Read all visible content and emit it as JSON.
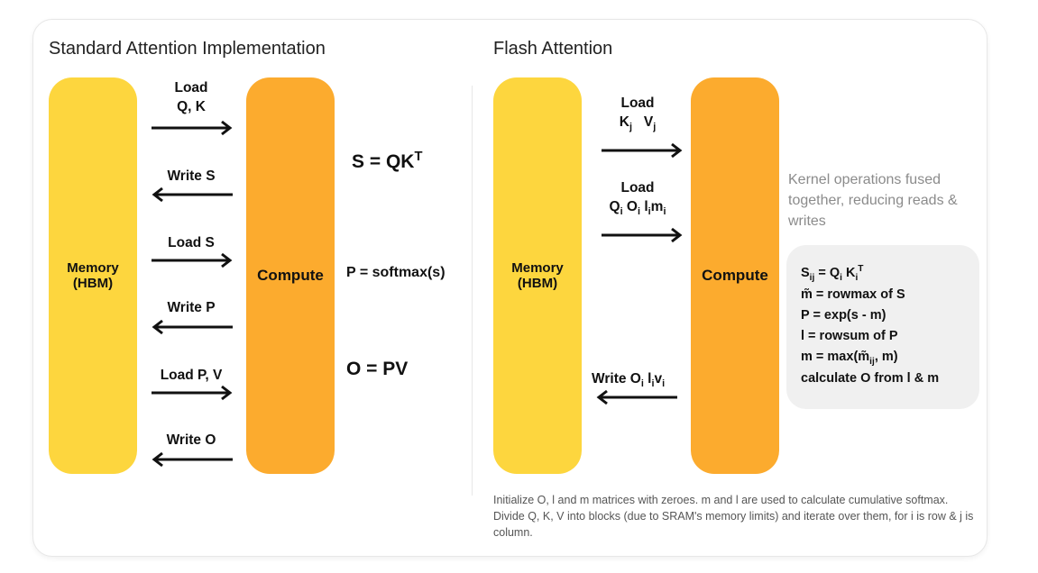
{
  "standard": {
    "title": "Standard Attention Implementation",
    "memory_label": "Memory\n(HBM)",
    "compute_label": "Compute",
    "arrows": {
      "load_qk_line1": "Load",
      "load_qk_line2": "Q, K",
      "write_s": "Write S",
      "load_s": "Load S",
      "write_p": "Write P",
      "load_pv": "Load P, V",
      "write_o": "Write O"
    },
    "equations": {
      "s_eq": "S = QK",
      "s_eq_sup": "T",
      "p_eq": "P = softmax(s)",
      "o_eq": "O = PV"
    }
  },
  "flash": {
    "title": "Flash Attention",
    "memory_label": "Memory\n(HBM)",
    "compute_label": "Compute",
    "arrows": {
      "load_kv_line1": "Load",
      "load_k": "K",
      "load_k_sub": "j",
      "load_v": "V",
      "load_v_sub": "j",
      "load_q_line1": "Load",
      "q": "Q",
      "q_sub": "i",
      "o": "O",
      "o_sub": "i",
      "l": "l",
      "l_sub": "i",
      "m": "m",
      "m_sub": "i",
      "write_label": "Write O",
      "write_o_sub": "i",
      "write_l": "l",
      "write_l_sub": "i",
      "write_v": "v",
      "write_v_sub": "i"
    },
    "fused_note": "Kernel operations fused together, reducing reads & writes",
    "ops": {
      "s_ij_1": "S",
      "s_ij_sub": "ij",
      "s_ij_2": "= Q",
      "s_ij_q_sub": "i",
      "s_ij_3": "K",
      "s_ij_k_sub": "i",
      "s_ij_k_sup": "T",
      "rowmax": "m̃ = rowmax of S",
      "exp": "P = exp(s - m)",
      "rowsum": "l = rowsum of P",
      "max_1": "m = max(m̃",
      "max_sub": "ij",
      "max_2": ", m)",
      "calc": "calculate O from l & m"
    },
    "footnote": "Initialize O, l and m matrices with zeroes. m and l are used to calculate cumulative softmax. Divide Q, K, V into blocks (due to SRAM's memory limits) and iterate over them, for i is row & j is column."
  },
  "colors": {
    "memory": "#fdd63e",
    "compute": "#fcab2e",
    "ops_box": "#f0f0f0"
  }
}
